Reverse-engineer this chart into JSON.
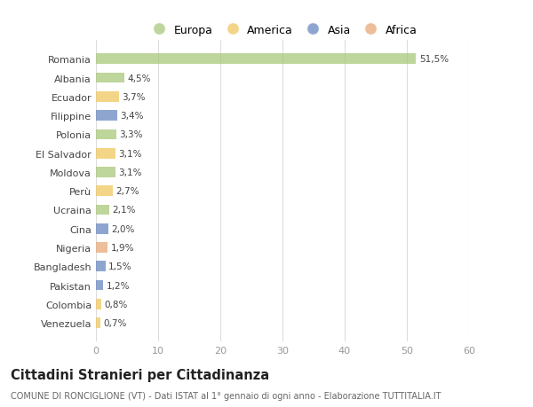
{
  "categories": [
    "Romania",
    "Albania",
    "Ecuador",
    "Filippine",
    "Polonia",
    "El Salvador",
    "Moldova",
    "Perù",
    "Ucraina",
    "Cina",
    "Nigeria",
    "Bangladesh",
    "Pakistan",
    "Colombia",
    "Venezuela"
  ],
  "values": [
    51.5,
    4.5,
    3.7,
    3.4,
    3.3,
    3.1,
    3.1,
    2.7,
    2.1,
    2.0,
    1.9,
    1.5,
    1.2,
    0.8,
    0.7
  ],
  "labels": [
    "51,5%",
    "4,5%",
    "3,7%",
    "3,4%",
    "3,3%",
    "3,1%",
    "3,1%",
    "2,7%",
    "2,1%",
    "2,0%",
    "1,9%",
    "1,5%",
    "1,2%",
    "0,8%",
    "0,7%"
  ],
  "colors": [
    "#a8c87a",
    "#a8c87a",
    "#f0c860",
    "#6888c0",
    "#a8c87a",
    "#f0c860",
    "#a8c87a",
    "#f0c860",
    "#a8c87a",
    "#6888c0",
    "#e8a878",
    "#6888c0",
    "#6888c0",
    "#f0c860",
    "#f0c860"
  ],
  "legend_labels": [
    "Europa",
    "America",
    "Asia",
    "Africa"
  ],
  "legend_colors": [
    "#a8c87a",
    "#f0c860",
    "#6888c0",
    "#e8a878"
  ],
  "xlim": [
    0,
    60
  ],
  "xticks": [
    0,
    10,
    20,
    30,
    40,
    50,
    60
  ],
  "title": "Cittadini Stranieri per Cittadinanza",
  "subtitle": "COMUNE DI RONCIGLIONE (VT) - Dati ISTAT al 1° gennaio di ogni anno - Elaborazione TUTTITALIA.IT",
  "bg_color": "#ffffff",
  "grid_color": "#dddddd",
  "bar_alpha": 0.75
}
